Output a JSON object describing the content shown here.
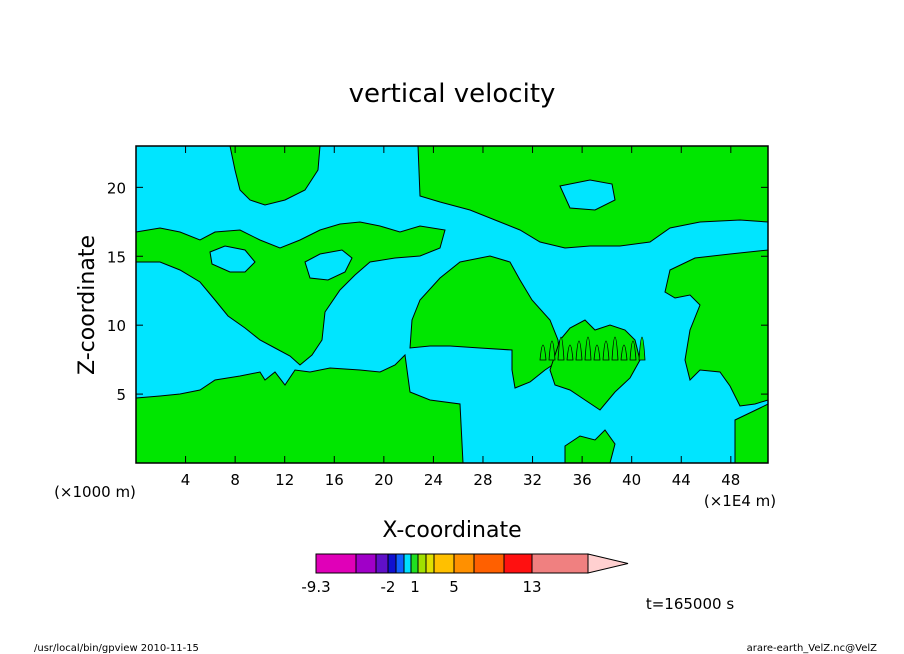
{
  "chart_data": {
    "type": "heatmap",
    "title": "vertical velocity",
    "xlabel": "X-coordinate",
    "ylabel": "Z-coordinate",
    "x_unit_left": "(×1000 m)",
    "x_unit_right": "(×1E4 m)",
    "x_ticks": [
      "4",
      "8",
      "12",
      "16",
      "20",
      "24",
      "28",
      "32",
      "36",
      "40",
      "44",
      "48"
    ],
    "y_ticks": [
      "5",
      "10",
      "15",
      "20"
    ],
    "xlim": [
      0,
      51
    ],
    "ylim": [
      0,
      23
    ],
    "time_label": "t=165000 s",
    "colorbar": {
      "colors": [
        "#e000b8",
        "#a000c8",
        "#6010c8",
        "#1010d0",
        "#1060ff",
        "#00e0ff",
        "#20e020",
        "#a0e000",
        "#e0e000",
        "#ffc000",
        "#ff9000",
        "#ff6000",
        "#ff1010",
        "#f08080",
        "#ffb8b8",
        "#ffd0d0"
      ],
      "labels": [
        "-9.3",
        "-2",
        "1",
        "5",
        "13"
      ],
      "label_positions": [
        -9.3,
        -2,
        1,
        5,
        13
      ]
    },
    "fill_colors": {
      "negative": "#00e5ff",
      "positive": "#00e600"
    }
  },
  "footer": {
    "left": "/usr/local/bin/gpview  2010-11-15",
    "right": "arare-earth_VelZ.nc@VelZ"
  }
}
